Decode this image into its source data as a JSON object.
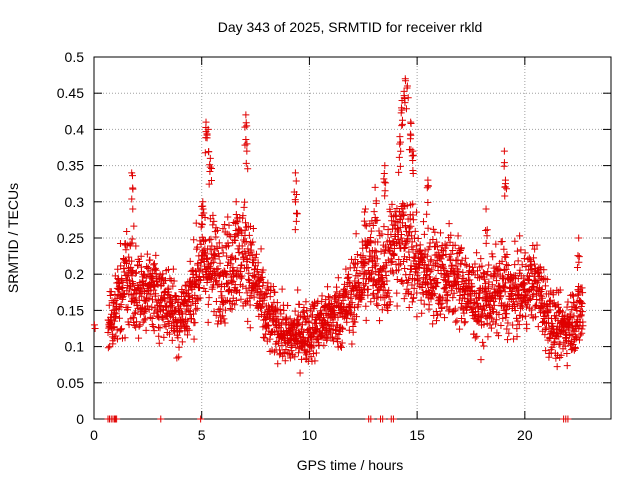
{
  "chart_data": {
    "type": "scatter",
    "title": "Day 343 of 2025, SRMTID for receiver rkld",
    "xlabel": "GPS time / hours",
    "ylabel": "SRMTID / TECUs",
    "xlim": [
      0,
      24
    ],
    "ylim": [
      0,
      0.5
    ],
    "xticks": [
      "0",
      "5",
      "10",
      "15",
      "20"
    ],
    "yticks": [
      "0",
      "0.05",
      "0.1",
      "0.15",
      "0.2",
      "0.25",
      "0.3",
      "0.35",
      "0.4",
      "0.45",
      "0.5"
    ],
    "grid": true,
    "marker": "plus",
    "color": "#e00000",
    "profile": [
      [
        0.0,
        0.13,
        0.0
      ],
      [
        0.6,
        0.13,
        0.04
      ],
      [
        1.0,
        0.15,
        0.05
      ],
      [
        1.5,
        0.2,
        0.07
      ],
      [
        2.0,
        0.17,
        0.05
      ],
      [
        2.5,
        0.18,
        0.05
      ],
      [
        3.0,
        0.17,
        0.05
      ],
      [
        3.5,
        0.16,
        0.05
      ],
      [
        4.0,
        0.14,
        0.05
      ],
      [
        4.5,
        0.17,
        0.05
      ],
      [
        5.0,
        0.22,
        0.07
      ],
      [
        5.5,
        0.21,
        0.07
      ],
      [
        6.0,
        0.2,
        0.06
      ],
      [
        6.5,
        0.22,
        0.07
      ],
      [
        7.0,
        0.23,
        0.07
      ],
      [
        7.5,
        0.19,
        0.06
      ],
      [
        8.0,
        0.14,
        0.05
      ],
      [
        8.5,
        0.13,
        0.04
      ],
      [
        9.0,
        0.11,
        0.04
      ],
      [
        9.5,
        0.12,
        0.04
      ],
      [
        10.0,
        0.12,
        0.04
      ],
      [
        10.5,
        0.13,
        0.04
      ],
      [
        11.0,
        0.14,
        0.04
      ],
      [
        11.5,
        0.15,
        0.05
      ],
      [
        12.0,
        0.17,
        0.05
      ],
      [
        12.5,
        0.2,
        0.06
      ],
      [
        13.0,
        0.22,
        0.07
      ],
      [
        13.5,
        0.2,
        0.06
      ],
      [
        14.0,
        0.25,
        0.08
      ],
      [
        14.5,
        0.25,
        0.08
      ],
      [
        15.0,
        0.21,
        0.07
      ],
      [
        15.5,
        0.2,
        0.06
      ],
      [
        16.0,
        0.2,
        0.06
      ],
      [
        16.5,
        0.2,
        0.06
      ],
      [
        17.0,
        0.19,
        0.06
      ],
      [
        17.5,
        0.17,
        0.05
      ],
      [
        18.0,
        0.16,
        0.05
      ],
      [
        18.5,
        0.17,
        0.05
      ],
      [
        19.0,
        0.18,
        0.06
      ],
      [
        19.5,
        0.17,
        0.05
      ],
      [
        20.0,
        0.18,
        0.05
      ],
      [
        20.5,
        0.19,
        0.05
      ],
      [
        21.0,
        0.15,
        0.05
      ],
      [
        21.5,
        0.12,
        0.04
      ],
      [
        22.0,
        0.13,
        0.04
      ],
      [
        22.7,
        0.15,
        0.05
      ]
    ],
    "spikes": [
      [
        1.75,
        0.34
      ],
      [
        1.8,
        0.29
      ],
      [
        5.05,
        0.3
      ],
      [
        5.2,
        0.41
      ],
      [
        5.3,
        0.4
      ],
      [
        5.4,
        0.36
      ],
      [
        6.6,
        0.3
      ],
      [
        7.05,
        0.42
      ],
      [
        7.1,
        0.38
      ],
      [
        9.35,
        0.34
      ],
      [
        9.4,
        0.31
      ],
      [
        12.6,
        0.29
      ],
      [
        13.05,
        0.32
      ],
      [
        13.5,
        0.35
      ],
      [
        14.2,
        0.39
      ],
      [
        14.3,
        0.44
      ],
      [
        14.45,
        0.47
      ],
      [
        14.55,
        0.46
      ],
      [
        14.7,
        0.41
      ],
      [
        14.8,
        0.37
      ],
      [
        15.5,
        0.33
      ],
      [
        18.2,
        0.29
      ],
      [
        19.05,
        0.37
      ],
      [
        19.1,
        0.33
      ],
      [
        22.5,
        0.25
      ]
    ],
    "zero_points": [
      0.65,
      0.72,
      0.8,
      0.88,
      0.95,
      1.0,
      1.05,
      3.1,
      4.95,
      12.75,
      12.85,
      13.3,
      13.4,
      13.8,
      13.9,
      21.8,
      21.9,
      22.0
    ]
  }
}
